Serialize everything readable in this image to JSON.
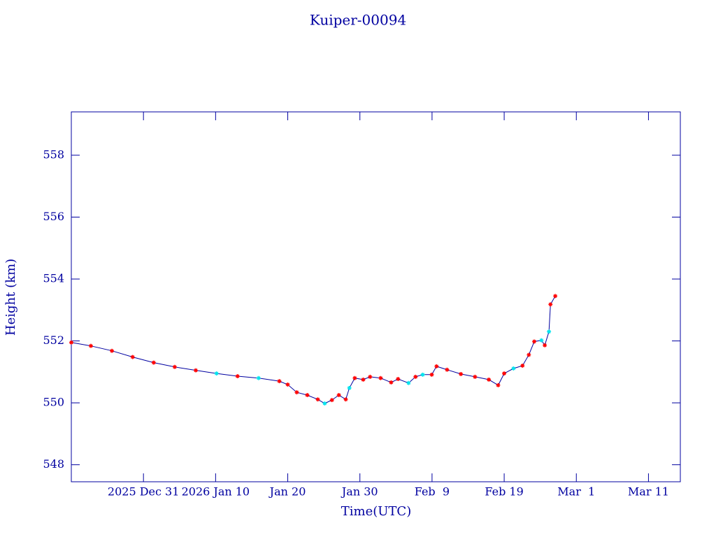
{
  "chart_data": {
    "type": "line",
    "title": "Kuiper-00094",
    "x_label": "Time(UTC)",
    "y_label": "Height (km)",
    "line_color": "#0000a0",
    "frame_color": "#0000a0",
    "marker": "asterisk",
    "x": [
      "2025-12-21T00:00",
      "2025-12-23T17:00",
      "2025-12-26T15:00",
      "2025-12-29T12:00",
      "2026-01-01T10:00",
      "2026-01-04T08:00",
      "2026-01-07T06:00",
      "2026-01-10T03:00",
      "2026-01-13T01:00",
      "2026-01-15T23:00",
      "2026-01-18T20:00",
      "2026-01-20T00:00",
      "2026-01-21T06:00",
      "2026-01-22T17:00",
      "2026-01-24T04:00",
      "2026-01-25T03:00",
      "2026-01-26T03:00",
      "2026-01-27T02:00",
      "2026-01-28T01:00",
      "2026-01-28T13:00",
      "2026-01-29T07:00",
      "2026-01-30T11:00",
      "2026-01-31T10:00",
      "2026-02-01T21:00",
      "2026-02-03T08:00",
      "2026-02-04T07:00",
      "2026-02-05T18:00",
      "2026-02-06T17:00",
      "2026-02-07T17:00",
      "2026-02-08T23:00",
      "2026-02-09T15:00",
      "2026-02-11T02:00",
      "2026-02-13T00:00",
      "2026-02-14T23:00",
      "2026-02-16T21:00",
      "2026-02-18T04:00",
      "2026-02-19T00:00",
      "2026-02-20T07:00",
      "2026-02-21T13:00",
      "2026-02-22T10:00",
      "2026-02-23T04:00",
      "2026-02-24T04:00",
      "2026-02-24T15:00",
      "2026-02-25T05:00",
      "2026-02-25T10:00",
      "2026-02-26T02:00"
    ],
    "values": [
      551.95,
      551.84,
      551.68,
      551.48,
      551.3,
      551.16,
      551.05,
      550.95,
      550.86,
      550.8,
      550.7,
      550.59,
      550.34,
      550.25,
      550.11,
      549.98,
      550.09,
      550.25,
      550.11,
      550.48,
      550.8,
      550.75,
      550.84,
      550.8,
      550.66,
      550.77,
      550.64,
      550.84,
      550.91,
      550.91,
      551.18,
      551.07,
      550.93,
      550.84,
      550.75,
      550.57,
      550.95,
      551.11,
      551.2,
      551.55,
      551.98,
      552.02,
      551.86,
      552.3,
      553.18,
      553.45
    ],
    "marker_colors": [
      "#ff0000",
      "#ff0000",
      "#ff0000",
      "#ff0000",
      "#ff0000",
      "#ff0000",
      "#ff0000",
      "#00e5ee",
      "#ff0000",
      "#00e5ee",
      "#ff0000",
      "#ff0000",
      "#ff0000",
      "#ff0000",
      "#ff0000",
      "#00e5ee",
      "#ff0000",
      "#ff0000",
      "#ff0000",
      "#00e5ee",
      "#ff0000",
      "#ff0000",
      "#ff0000",
      "#ff0000",
      "#ff0000",
      "#ff0000",
      "#00e5ee",
      "#ff0000",
      "#00e5ee",
      "#ff0000",
      "#ff0000",
      "#ff0000",
      "#ff0000",
      "#ff0000",
      "#ff0000",
      "#ff0000",
      "#ff0000",
      "#00e5ee",
      "#ff0000",
      "#ff0000",
      "#ff0000",
      "#00e5ee",
      "#ff0000",
      "#00e5ee",
      "#ff0000",
      "#ff0000"
    ],
    "xlim": [
      "2025-12-21T00:00",
      "2026-03-15T10:00"
    ],
    "xticks": [
      {
        "value": "2025-12-31T00:00",
        "label": "2025 Dec 31"
      },
      {
        "value": "2026-01-10T00:00",
        "label": "2026 Jan 10"
      },
      {
        "value": "2026-01-20T00:00",
        "label": "Jan 20"
      },
      {
        "value": "2026-01-30T00:00",
        "label": "Jan 30"
      },
      {
        "value": "2026-02-09T00:00",
        "label": "Feb  9"
      },
      {
        "value": "2026-02-19T00:00",
        "label": "Feb 19"
      },
      {
        "value": "2026-03-01T00:00",
        "label": "Mar  1"
      },
      {
        "value": "2026-03-11T00:00",
        "label": "Mar 11"
      }
    ],
    "ylim": [
      547.45,
      559.4
    ],
    "yticks": [
      548,
      550,
      552,
      554,
      556,
      558
    ]
  }
}
